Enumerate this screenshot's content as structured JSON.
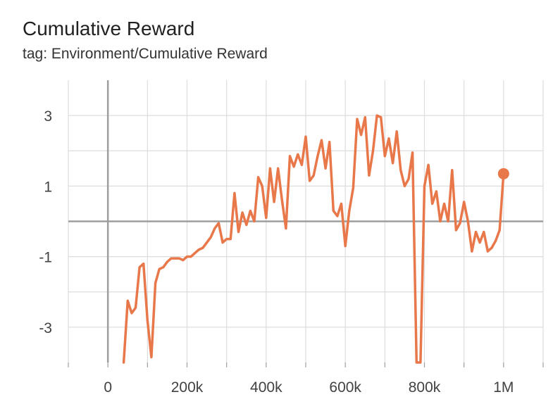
{
  "title": "Cumulative Reward",
  "subtitle": "tag: Environment/Cumulative Reward",
  "colors": {
    "series": "#e8774a",
    "grid": "#dddddd",
    "axis": "#9e9e9e"
  },
  "chart_data": {
    "type": "line",
    "title": "Cumulative Reward",
    "subtitle": "tag: Environment/Cumulative Reward",
    "xlabel": "",
    "ylabel": "",
    "xlim": [
      -100000,
      1100000
    ],
    "ylim": [
      -4.0,
      4.0
    ],
    "x_ticks": [
      0,
      200000,
      400000,
      600000,
      800000,
      1000000
    ],
    "x_tick_labels": [
      "0",
      "200k",
      "400k",
      "600k",
      "800k",
      "1M"
    ],
    "y_ticks": [
      3,
      1,
      -1,
      -3
    ],
    "y_tick_labels": [
      "3",
      "1",
      "-1",
      "-3"
    ],
    "grid": true,
    "series": [
      {
        "color": "#e8774a",
        "x": [
          40000,
          50000,
          60000,
          70000,
          80000,
          90000,
          100000,
          110000,
          120000,
          130000,
          140000,
          150000,
          160000,
          170000,
          180000,
          190000,
          200000,
          210000,
          220000,
          230000,
          240000,
          250000,
          260000,
          270000,
          280000,
          290000,
          300000,
          310000,
          320000,
          330000,
          340000,
          350000,
          360000,
          370000,
          380000,
          390000,
          400000,
          410000,
          420000,
          430000,
          440000,
          450000,
          460000,
          470000,
          480000,
          490000,
          500000,
          510000,
          520000,
          530000,
          540000,
          550000,
          560000,
          570000,
          580000,
          590000,
          600000,
          610000,
          620000,
          630000,
          640000,
          650000,
          660000,
          670000,
          680000,
          690000,
          700000,
          710000,
          720000,
          730000,
          740000,
          750000,
          760000,
          770000,
          780000,
          790000,
          800000,
          810000,
          820000,
          830000,
          840000,
          850000,
          860000,
          870000,
          880000,
          890000,
          900000,
          910000,
          920000,
          930000,
          940000,
          950000,
          960000,
          970000,
          980000,
          990000,
          1000000
        ],
        "y": [
          -4.0,
          -2.25,
          -2.6,
          -2.45,
          -1.3,
          -1.2,
          -2.8,
          -3.85,
          -1.75,
          -1.35,
          -1.3,
          -1.15,
          -1.05,
          -1.05,
          -1.05,
          -1.1,
          -1.0,
          -1.0,
          -0.9,
          -0.8,
          -0.75,
          -0.6,
          -0.45,
          -0.2,
          -0.05,
          -0.6,
          -0.5,
          -0.5,
          0.8,
          -0.3,
          0.25,
          -0.1,
          0.3,
          0.0,
          1.25,
          1.0,
          0.1,
          1.5,
          0.55,
          1.5,
          0.6,
          -0.2,
          1.85,
          1.55,
          1.9,
          1.6,
          2.4,
          1.15,
          1.3,
          1.85,
          2.3,
          1.5,
          2.25,
          0.3,
          0.15,
          0.5,
          -0.7,
          0.3,
          0.95,
          2.9,
          2.45,
          2.95,
          1.3,
          2.0,
          3.0,
          2.95,
          1.85,
          2.35,
          1.65,
          2.55,
          1.45,
          1.0,
          1.2,
          1.95,
          -4.0,
          -4.0,
          1.0,
          1.6,
          0.5,
          0.85,
          0.0,
          0.5,
          0.0,
          1.45,
          -0.25,
          -0.05,
          0.55,
          0.0,
          -0.85,
          -0.3,
          -0.6,
          -0.3,
          -0.85,
          -0.75,
          -0.55,
          -0.25,
          1.35
        ]
      }
    ]
  }
}
